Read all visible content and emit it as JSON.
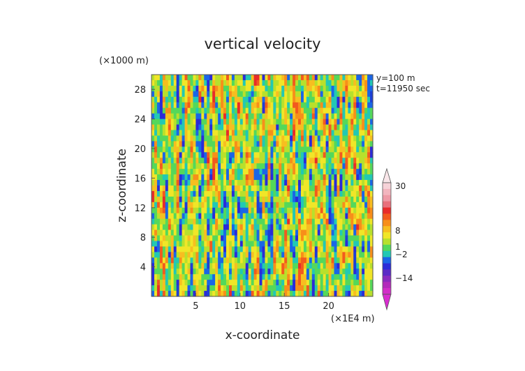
{
  "chart_data": {
    "type": "heatmap",
    "title": "vertical velocity",
    "xlabel": "x-coordinate",
    "ylabel": "z-coordinate",
    "x_unit_label": "(×1E4 m)",
    "y_unit_label": "(×1000 m)",
    "annotations": [
      "y=100 m",
      "t=11950 sec"
    ],
    "xlim": [
      0,
      25
    ],
    "ylim": [
      0,
      30
    ],
    "x_ticks": [
      5,
      10,
      15,
      20
    ],
    "y_ticks": [
      4,
      8,
      12,
      16,
      20,
      24,
      28
    ],
    "x_tick_labels": [
      "5",
      "10",
      "15",
      "20"
    ],
    "y_tick_labels": [
      "4",
      "8",
      "12",
      "16",
      "20",
      "24",
      "28"
    ],
    "colorbar": {
      "labels": [
        "30",
        "8",
        "1",
        "−2",
        "−14"
      ],
      "label_values": [
        30,
        8,
        1,
        -2,
        -14
      ],
      "bands": [
        {
          "color": "#f6d2d8"
        },
        {
          "color": "#f2b5be"
        },
        {
          "color": "#ee9aa6"
        },
        {
          "color": "#e8707c"
        },
        {
          "color": "#e82b2b"
        },
        {
          "color": "#f25a1e"
        },
        {
          "color": "#f78f1a"
        },
        {
          "color": "#f7be20"
        },
        {
          "color": "#f0e628"
        },
        {
          "color": "#b8e02c"
        },
        {
          "color": "#54d85a"
        },
        {
          "color": "#22c8b4"
        },
        {
          "color": "#1a66e6"
        },
        {
          "color": "#2b2bd8"
        },
        {
          "color": "#5b2bc6"
        },
        {
          "color": "#8a2bbf"
        },
        {
          "color": "#b22bbb"
        },
        {
          "color": "#d22ec8"
        }
      ],
      "top_color": "#f9e6e9",
      "bottom_color": "#d92cd0"
    },
    "legend": "right",
    "grid": false
  }
}
